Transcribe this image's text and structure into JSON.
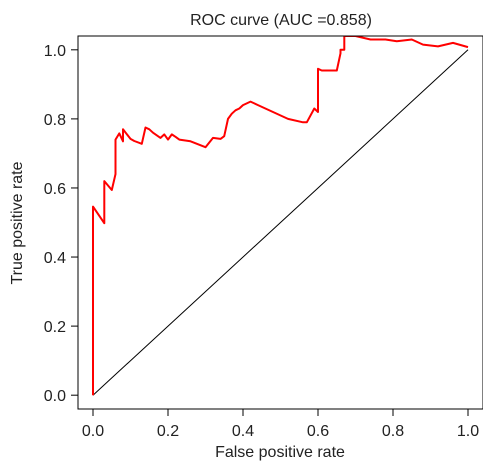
{
  "chart_data": {
    "type": "line",
    "title": "ROC curve (AUC =0.858)",
    "xlabel": "False positive rate",
    "ylabel": "True positive rate",
    "xlim": [
      -0.04,
      1.04
    ],
    "ylim": [
      -0.04,
      1.04
    ],
    "xticks": [
      0.0,
      0.2,
      0.4,
      0.6,
      0.8,
      1.0
    ],
    "xtick_labels": [
      "0.0",
      "0.2",
      "0.4",
      "0.6",
      "0.8",
      "1.0"
    ],
    "yticks": [
      0.0,
      0.2,
      0.4,
      0.6,
      0.8,
      1.0
    ],
    "ytick_labels": [
      "0.0",
      "0.2",
      "0.4",
      "0.6",
      "0.8",
      "1.0"
    ],
    "grid": false,
    "series": [
      {
        "color": "#ff0000",
        "x": [
          0.0,
          0.0,
          0.0,
          0.03,
          0.03,
          0.05,
          0.06,
          0.06,
          0.07,
          0.08,
          0.08,
          0.1,
          0.11,
          0.13,
          0.14,
          0.15,
          0.16,
          0.18,
          0.19,
          0.2,
          0.21,
          0.22,
          0.23,
          0.26,
          0.3,
          0.32,
          0.34,
          0.35,
          0.36,
          0.37,
          0.38,
          0.39,
          0.4,
          0.42,
          0.44,
          0.48,
          0.52,
          0.56,
          0.57,
          0.59,
          0.6,
          0.6,
          0.61,
          0.65,
          0.66,
          0.66,
          0.67,
          0.67,
          0.7,
          0.74,
          0.78,
          0.81,
          0.85,
          0.88,
          0.92,
          0.96,
          1.0
        ],
        "y": [
          0.0,
          0.546,
          0.546,
          0.498,
          0.62,
          0.594,
          0.64,
          0.74,
          0.758,
          0.735,
          0.77,
          0.742,
          0.736,
          0.728,
          0.775,
          0.77,
          0.76,
          0.745,
          0.755,
          0.74,
          0.755,
          0.748,
          0.74,
          0.735,
          0.718,
          0.745,
          0.742,
          0.75,
          0.8,
          0.815,
          0.825,
          0.83,
          0.84,
          0.85,
          0.84,
          0.82,
          0.8,
          0.79,
          0.79,
          0.83,
          0.82,
          0.945,
          0.94,
          0.94,
          0.99,
          1.0,
          1.0,
          1.04,
          1.04,
          1.03,
          1.03,
          1.025,
          1.03,
          1.015,
          1.01,
          1.02,
          1.008
        ]
      },
      {
        "color": "#000000",
        "x": [
          0,
          1
        ],
        "y": [
          0,
          1
        ]
      }
    ]
  }
}
